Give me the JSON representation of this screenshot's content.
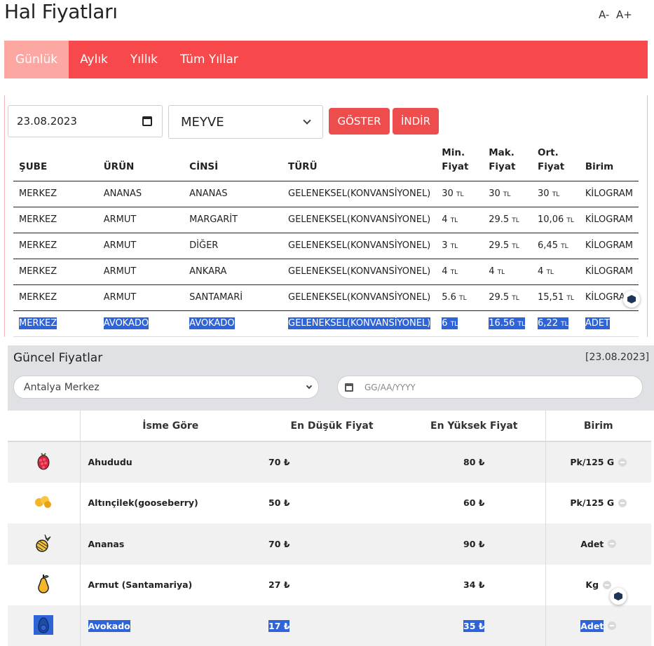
{
  "page": {
    "title": "Hal Fiyatları",
    "font_decrease": "A-",
    "font_increase": "A+"
  },
  "tabs": [
    {
      "label": "Günlük",
      "active": true
    },
    {
      "label": "Aylık",
      "active": false
    },
    {
      "label": "Yıllık",
      "active": false
    },
    {
      "label": "Tüm Yıllar",
      "active": false
    }
  ],
  "filters": {
    "date_value": "23.08.2023",
    "category_value": "MEYVE",
    "show_button": "GÖSTER",
    "download_button": "İNDİR"
  },
  "hal_table": {
    "headers": {
      "sube": "ŞUBE",
      "urun": "ÜRÜN",
      "cinsi": "CİNSİ",
      "turu": "TÜRÜ",
      "min_1": "Min.",
      "min_2": "Fiyat",
      "max_1": "Mak.",
      "max_2": "Fiyat",
      "avg_1": "Ort.",
      "avg_2": "Fiyat",
      "birim": "Birim"
    },
    "currency": "TL",
    "rows": [
      {
        "sube": "MERKEZ",
        "urun": "ANANAS",
        "cinsi": "ANANAS",
        "turu": "GELENEKSEL(KONVANSİYONEL)",
        "min": "30",
        "max": "30",
        "avg": "30",
        "birim": "KİLOGRAM"
      },
      {
        "sube": "MERKEZ",
        "urun": "ARMUT",
        "cinsi": "MARGARİT",
        "turu": "GELENEKSEL(KONVANSİYONEL)",
        "min": "4",
        "max": "29.5",
        "avg": "10,06",
        "birim": "KİLOGRAM"
      },
      {
        "sube": "MERKEZ",
        "urun": "ARMUT",
        "cinsi": "DİĞER",
        "turu": "GELENEKSEL(KONVANSİYONEL)",
        "min": "3",
        "max": "29.5",
        "avg": "6,45",
        "birim": "KİLOGRAM"
      },
      {
        "sube": "MERKEZ",
        "urun": "ARMUT",
        "cinsi": "ANKARA",
        "turu": "GELENEKSEL(KONVANSİYONEL)",
        "min": "4",
        "max": "4",
        "avg": "4",
        "birim": "KİLOGRAM"
      },
      {
        "sube": "MERKEZ",
        "urun": "ARMUT",
        "cinsi": "SANTAMARİ",
        "turu": "GELENEKSEL(KONVANSİYONEL)",
        "min": "5.6",
        "max": "29.5",
        "avg": "15,51",
        "birim": "KİLOGRA"
      },
      {
        "sube": "MERKEZ",
        "urun": "AVOKADO",
        "cinsi": "AVOKADO",
        "turu": "GELENEKSEL(KONVANSİYONEL)",
        "min": "6",
        "max": "16.56",
        "avg": "6,22",
        "birim": "ADET"
      }
    ]
  },
  "guncel": {
    "title": "Güncel Fiyatlar",
    "date": "[23.08.2023]",
    "branch_value": "Antalya Merkez",
    "date_placeholder": "GG/AA/YYYY",
    "headers": {
      "name": "İsme Göre",
      "min": "En Düşük Fiyat",
      "max": "En Yüksek Fiyat",
      "unit": "Birim"
    },
    "currency_symbol": "₺",
    "rows": [
      {
        "icon": "raspberry-icon",
        "name": "Ahududu",
        "min": "70",
        "max": "80",
        "unit": "Pk/125 G"
      },
      {
        "icon": "gooseberry-icon",
        "name": "Altınçilek(gooseberry)",
        "min": "50",
        "max": "60",
        "unit": "Pk/125 G"
      },
      {
        "icon": "pineapple-icon",
        "name": "Ananas",
        "min": "70",
        "max": "90",
        "unit": "Adet"
      },
      {
        "icon": "pear-icon",
        "name": "Armut (Santamariya)",
        "min": "27",
        "max": "34",
        "unit": "Kg"
      },
      {
        "icon": "avocado-icon",
        "name": "Avokado",
        "min": "17",
        "max": "35",
        "unit": "Adet"
      }
    ]
  },
  "colors": {
    "tab_bar": "#f7494b",
    "tab_active": "#fca7a2",
    "button": "#ee4d4d",
    "selection": "#2e64d8",
    "section_bg": "#dfe1e5"
  }
}
